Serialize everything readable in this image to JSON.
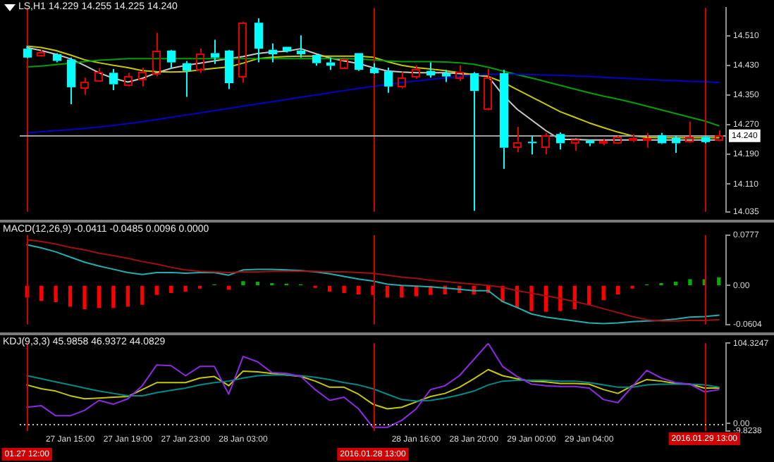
{
  "chart_data": [
    {
      "type": "candlestick",
      "title": "LS,H1 14.229 14.255 14.225 14.240",
      "categories": [
        "01.27 12:00",
        null,
        null,
        "27 Jan 15:00",
        null,
        null,
        null,
        "27 Jan 19:00",
        null,
        null,
        null,
        "27 Jan 23:00",
        null,
        null,
        null,
        "28 Jan 03:00",
        null,
        null,
        null,
        null,
        null,
        null,
        null,
        null,
        "2016.01.28 13:00",
        null,
        null,
        "28 Jan 16:00",
        null,
        null,
        null,
        "28 Jan 20:00",
        null,
        null,
        null,
        "29 Jan 00:00",
        null,
        null,
        null,
        "29 Jan 04:00",
        null,
        null,
        null,
        null,
        null,
        null,
        null,
        "2016.01.29 13:00",
        null
      ],
      "ohlc": [
        [
          14.475,
          14.483,
          14.449,
          14.451
        ],
        [
          14.455,
          14.472,
          14.453,
          14.464
        ],
        [
          14.46,
          14.463,
          14.438,
          14.442
        ],
        [
          14.446,
          14.451,
          14.325,
          14.371
        ],
        [
          14.371,
          14.397,
          14.351,
          14.385
        ],
        [
          14.389,
          14.422,
          14.387,
          14.413
        ],
        [
          14.41,
          14.42,
          14.363,
          14.379
        ],
        [
          14.378,
          14.41,
          14.373,
          14.4
        ],
        [
          14.394,
          14.424,
          14.373,
          14.414
        ],
        [
          14.409,
          14.518,
          14.4,
          14.47
        ],
        [
          14.47,
          14.472,
          14.421,
          14.438
        ],
        [
          14.436,
          14.441,
          14.345,
          14.415
        ],
        [
          14.422,
          14.475,
          14.409,
          14.463
        ],
        [
          14.463,
          14.499,
          14.434,
          14.451
        ],
        [
          14.47,
          14.472,
          14.366,
          14.382
        ],
        [
          14.402,
          14.548,
          14.383,
          14.545
        ],
        [
          14.545,
          14.557,
          14.438,
          14.475
        ],
        [
          14.472,
          14.489,
          14.438,
          14.46
        ],
        [
          14.48,
          14.48,
          14.465,
          14.468
        ],
        [
          14.47,
          14.511,
          14.451,
          14.46
        ],
        [
          14.458,
          14.46,
          14.429,
          14.436
        ],
        [
          14.438,
          14.451,
          14.418,
          14.429
        ],
        [
          14.426,
          14.451,
          14.424,
          14.448
        ],
        [
          14.463,
          14.463,
          14.415,
          14.418
        ],
        [
          14.422,
          14.436,
          14.407,
          14.409
        ],
        [
          14.414,
          14.424,
          14.356,
          14.373
        ],
        [
          14.373,
          14.412,
          14.368,
          14.397
        ],
        [
          14.4,
          14.43,
          14.394,
          14.42
        ],
        [
          14.415,
          14.438,
          14.397,
          14.403
        ],
        [
          14.409,
          14.418,
          14.385,
          14.4
        ],
        [
          14.4,
          14.43,
          14.388,
          14.414
        ],
        [
          14.409,
          14.412,
          14.038,
          14.361
        ],
        [
          14.315,
          14.421,
          14.309,
          14.397
        ],
        [
          14.409,
          14.418,
          14.151,
          14.208
        ],
        [
          14.211,
          14.264,
          14.196,
          14.224
        ],
        [
          14.224,
          14.24,
          14.19,
          14.221
        ],
        [
          14.208,
          14.248,
          14.19,
          14.24
        ],
        [
          14.245,
          14.249,
          14.203,
          14.22
        ],
        [
          14.223,
          14.235,
          14.2,
          14.232
        ],
        [
          14.227,
          14.23,
          14.212,
          14.22
        ],
        [
          14.224,
          14.232,
          14.215,
          14.225
        ],
        [
          14.221,
          14.24,
          14.218,
          14.236
        ],
        [
          14.23,
          14.245,
          14.223,
          14.235
        ],
        [
          14.23,
          14.248,
          14.208,
          14.235
        ],
        [
          14.242,
          14.248,
          14.218,
          14.22
        ],
        [
          14.235,
          14.24,
          14.194,
          14.22
        ],
        [
          14.223,
          14.278,
          14.221,
          14.236
        ],
        [
          14.237,
          14.24,
          14.22,
          14.223
        ],
        [
          14.229,
          14.255,
          14.225,
          14.24
        ]
      ],
      "colors": [
        "#00ffff",
        "#e00000",
        "#00ffff",
        "#00ffff",
        "#e00000",
        "#e00000",
        "#00ffff",
        "#e00000",
        "#e00000",
        "#e00000",
        "#00ffff",
        "#00ffff",
        "#e00000",
        "#00ffff",
        "#00ffff",
        "#e00000",
        "#00ffff",
        "#00ffff",
        "#00ffff",
        "#00ffff",
        "#00ffff",
        "#00ffff",
        "#e00000",
        "#00ffff",
        "#00ffff",
        "#00ffff",
        "#e00000",
        "#e00000",
        "#00ffff",
        "#00ffff",
        "#e00000",
        "#00ffff",
        "#e00000",
        "#00ffff",
        "#e00000",
        "#00ffff",
        "#e00000",
        "#00ffff",
        "#e00000",
        "#00ffff",
        "#e00000",
        "#e00000",
        "#e00000",
        "#e00000",
        "#00ffff",
        "#00ffff",
        "#e00000",
        "#00ffff",
        "#e00000"
      ],
      "series": [
        {
          "type": "line",
          "color": "#c8c8c8",
          "values": [
            14.478,
            14.47,
            14.46,
            14.448,
            14.43,
            14.41,
            14.395,
            14.385,
            14.395,
            14.41,
            14.422,
            14.43,
            14.436,
            14.442,
            14.448,
            14.454,
            14.462,
            14.466,
            14.468,
            14.475,
            14.462,
            14.45,
            14.442,
            14.435,
            14.424,
            14.415,
            14.412,
            14.41,
            14.41,
            14.41,
            14.408,
            14.404,
            14.4,
            14.351,
            14.312,
            14.283,
            14.254,
            14.23,
            14.23,
            14.229,
            14.229,
            14.229,
            14.229,
            14.229,
            14.229,
            14.229,
            14.229,
            14.229,
            14.229
          ]
        },
        {
          "type": "line",
          "color": "#c8c800",
          "values": [
            14.482,
            14.478,
            14.47,
            14.458,
            14.445,
            14.437,
            14.43,
            14.424,
            14.416,
            14.413,
            14.412,
            14.413,
            14.418,
            14.422,
            14.426,
            14.436,
            14.448,
            14.452,
            14.454,
            14.455,
            14.455,
            14.455,
            14.455,
            14.455,
            14.452,
            14.44,
            14.43,
            14.424,
            14.42,
            14.416,
            14.41,
            14.405,
            14.4,
            14.385,
            14.365,
            14.345,
            14.325,
            14.305,
            14.29,
            14.275,
            14.262,
            14.25,
            14.24,
            14.236,
            14.235,
            14.235,
            14.235,
            14.235,
            14.235
          ]
        },
        {
          "type": "line",
          "color": "#00a000",
          "values": [
            14.426,
            14.428,
            14.432,
            14.436,
            14.44,
            14.444,
            14.446,
            14.448,
            14.448,
            14.448,
            14.448,
            14.448,
            14.448,
            14.448,
            14.448,
            14.448,
            14.448,
            14.448,
            14.448,
            14.448,
            14.448,
            14.448,
            14.448,
            14.447,
            14.445,
            14.442,
            14.44,
            14.44,
            14.44,
            14.439,
            14.437,
            14.433,
            14.425,
            14.415,
            14.405,
            14.396,
            14.386,
            14.376,
            14.366,
            14.356,
            14.347,
            14.339,
            14.33,
            14.32,
            14.31,
            14.3,
            14.29,
            14.28,
            14.267
          ]
        },
        {
          "type": "line",
          "color": "#0000c8",
          "values": [
            14.248,
            14.251,
            14.254,
            14.257,
            14.26,
            14.264,
            14.268,
            14.273,
            14.278,
            14.284,
            14.29,
            14.296,
            14.302,
            14.308,
            14.314,
            14.32,
            14.326,
            14.332,
            14.338,
            14.344,
            14.35,
            14.356,
            14.362,
            14.368,
            14.373,
            14.379,
            14.384,
            14.388,
            14.392,
            14.396,
            14.4,
            14.404,
            14.406,
            14.406,
            14.406,
            14.405,
            14.404,
            14.403,
            14.401,
            14.4,
            14.398,
            14.396,
            14.394,
            14.392,
            14.39,
            14.389,
            14.387,
            14.386,
            14.384
          ]
        }
      ],
      "ylim": [
        14.035,
        14.585
      ],
      "yticks": [
        {
          "value": 14.51,
          "label": "14.510"
        },
        {
          "value": 14.43,
          "label": "14.430"
        },
        {
          "value": 14.35,
          "label": "14.350"
        },
        {
          "value": 14.27,
          "label": "14.270"
        },
        {
          "value": 14.19,
          "label": "14.190"
        },
        {
          "value": 14.11,
          "label": "14.110"
        },
        14.035
      ],
      "ref_lines": [
        {
          "axis": "x",
          "value": "01.27 12:00",
          "color": "#d00000"
        },
        {
          "axis": "x",
          "value": "2016.01.28 13:00",
          "color": "#d00000"
        },
        {
          "axis": "x",
          "value": "2016.01.29 13:00",
          "color": "#d00000"
        },
        {
          "axis": "y",
          "value": 14.24,
          "label": "14.240",
          "color": "#a0a0a0"
        }
      ],
      "grid": false,
      "legend": false,
      "tick_labels": "y"
    },
    {
      "type": "bar",
      "title": "MACD(12,26,9) -0.0411 -0.0485 0.0096 0.0000",
      "categories": [
        "01.27 12:00",
        null,
        null,
        "27 Jan 15:00",
        null,
        null,
        null,
        "27 Jan 19:00",
        null,
        null,
        null,
        "27 Jan 23:00",
        null,
        null,
        null,
        "28 Jan 03:00",
        null,
        null,
        null,
        null,
        null,
        null,
        null,
        null,
        "2016.01.28 13:00",
        null,
        null,
        "28 Jan 16:00",
        null,
        null,
        null,
        "28 Jan 20:00",
        null,
        null,
        null,
        "29 Jan 00:00",
        null,
        null,
        null,
        "29 Jan 04:00",
        null,
        null,
        null,
        null,
        null,
        null,
        null,
        "2016.01.29 13:00",
        null
      ],
      "series": [
        {
          "type": "bar",
          "values": [
            -0.018,
            -0.023,
            -0.025,
            -0.032,
            -0.036,
            -0.034,
            -0.034,
            -0.032,
            -0.029,
            -0.014,
            -0.011,
            -0.009,
            -0.004,
            0.001,
            -0.006,
            0.006,
            0.005,
            0.003,
            0.002,
            0.001,
            -0.003,
            -0.009,
            -0.011,
            -0.013,
            -0.014,
            -0.018,
            -0.018,
            -0.016,
            -0.014,
            -0.013,
            -0.011,
            -0.013,
            -0.011,
            -0.025,
            -0.034,
            -0.039,
            -0.04,
            -0.039,
            -0.036,
            -0.03,
            -0.022,
            -0.013,
            -0.004,
            0.001,
            0.003,
            0.005,
            0.009,
            0.009,
            0.012
          ],
          "colors": [
            "#ff0000",
            "#ff0000",
            "#ff0000",
            "#ff0000",
            "#ff0000",
            "#ff0000",
            "#ff0000",
            "#ff0000",
            "#ff0000",
            "#ff0000",
            "#ff0000",
            "#ff0000",
            "#ff0000",
            "#00b000",
            "#ff0000",
            "#00b000",
            "#00b000",
            "#00b000",
            "#00b000",
            "#00b000",
            "#ff0000",
            "#ff0000",
            "#ff0000",
            "#ff0000",
            "#ff0000",
            "#ff0000",
            "#ff0000",
            "#ff0000",
            "#ff0000",
            "#ff0000",
            "#ff0000",
            "#ff0000",
            "#ff0000",
            "#ff0000",
            "#ff0000",
            "#ff0000",
            "#ff0000",
            "#ff0000",
            "#ff0000",
            "#ff0000",
            "#ff0000",
            "#ff0000",
            "#ff0000",
            "#00b000",
            "#00b000",
            "#00b000",
            "#00b000",
            "#00b000",
            "#00b000"
          ]
        },
        {
          "type": "line",
          "color": "#20b0b0",
          "values": [
            0.063,
            0.058,
            0.052,
            0.044,
            0.036,
            0.03,
            0.025,
            0.02,
            0.017,
            0.02,
            0.02,
            0.019,
            0.02,
            0.02,
            0.016,
            0.024,
            0.025,
            0.025,
            0.024,
            0.023,
            0.021,
            0.018,
            0.014,
            0.01,
            0.007,
            0.002,
            0.0,
            -0.001,
            -0.002,
            -0.004,
            -0.006,
            -0.008,
            -0.008,
            -0.025,
            -0.034,
            -0.044,
            -0.049,
            -0.052,
            -0.055,
            -0.058,
            -0.059,
            -0.058,
            -0.056,
            -0.055,
            -0.054,
            -0.052,
            -0.049,
            -0.048,
            -0.046
          ]
        },
        {
          "type": "line",
          "color": "#a01010",
          "values": [
            0.071,
            0.068,
            0.064,
            0.059,
            0.055,
            0.05,
            0.046,
            0.042,
            0.037,
            0.033,
            0.028,
            0.024,
            0.022,
            0.021,
            0.02,
            0.021,
            0.021,
            0.022,
            0.022,
            0.022,
            0.022,
            0.021,
            0.021,
            0.02,
            0.019,
            0.016,
            0.013,
            0.011,
            0.008,
            0.006,
            0.004,
            0.002,
            0.0,
            -0.003,
            -0.008,
            -0.012,
            -0.016,
            -0.02,
            -0.025,
            -0.03,
            -0.036,
            -0.042,
            -0.048,
            -0.053,
            -0.055,
            -0.055,
            -0.054,
            -0.054,
            -0.053
          ]
        }
      ],
      "ylim": [
        -0.0604,
        0.0777
      ],
      "yticks": [
        0.0777,
        {
          "value": 0,
          "label": "0.00"
        },
        -0.0604
      ],
      "ref_lines": [
        {
          "axis": "x",
          "value": "01.27 12:00",
          "color": "#d00000"
        },
        {
          "axis": "x",
          "value": "2016.01.28 13:00",
          "color": "#d00000"
        },
        {
          "axis": "x",
          "value": "2016.01.29 13:00",
          "color": "#d00000"
        }
      ],
      "grid": false,
      "legend": false,
      "tick_labels": "y"
    },
    {
      "type": "line",
      "title": "KDJ(9,3,3) 45.9858 46.9372 44.0829",
      "categories": [
        "01.27 12:00",
        null,
        null,
        "27 Jan 15:00",
        null,
        null,
        null,
        "27 Jan 19:00",
        null,
        null,
        null,
        "27 Jan 23:00",
        null,
        null,
        null,
        "28 Jan 03:00",
        null,
        null,
        null,
        null,
        null,
        null,
        null,
        null,
        "2016.01.28 13:00",
        null,
        null,
        "28 Jan 16:00",
        null,
        null,
        null,
        "28 Jan 20:00",
        null,
        null,
        null,
        "29 Jan 00:00",
        null,
        null,
        null,
        "29 Jan 04:00",
        null,
        null,
        null,
        null,
        null,
        null,
        null,
        "2016.01.29 13:00",
        null
      ],
      "series": [
        {
          "type": "line",
          "color": "#c8c800",
          "values": [
            50,
            45,
            42,
            36,
            32,
            33,
            34,
            35,
            44,
            53,
            53,
            53,
            59,
            61,
            49,
            68,
            67,
            65,
            63,
            61,
            55,
            47,
            47,
            38,
            25,
            19,
            21,
            28,
            35,
            39,
            47,
            58,
            70,
            62,
            58,
            55,
            54,
            52,
            52,
            51,
            44,
            39,
            49,
            57,
            55,
            52,
            51,
            46,
            46
          ]
        },
        {
          "type": "line",
          "color": "#008b8b",
          "values": [
            62,
            58,
            54,
            50,
            46,
            42,
            39,
            36,
            36,
            40,
            43,
            46,
            50,
            53,
            55,
            59,
            62,
            63,
            63,
            62,
            60,
            57,
            53,
            50,
            45,
            38,
            31,
            29,
            30,
            33,
            37,
            42,
            50,
            55,
            56,
            56,
            56,
            55,
            55,
            53,
            50,
            47,
            47,
            50,
            51,
            51,
            51,
            50,
            47
          ]
        },
        {
          "type": "line",
          "color": "#8a2be2",
          "values": [
            21,
            23,
            10,
            10,
            17,
            30,
            25,
            32,
            49,
            76,
            75,
            62,
            74,
            74,
            38,
            87,
            80,
            66,
            65,
            61,
            44,
            30,
            34,
            19,
            -5,
            -5,
            4,
            19,
            44,
            49,
            62,
            83,
            104,
            74,
            61,
            51,
            49,
            48,
            48,
            46,
            31,
            27,
            48,
            69,
            59,
            53,
            51,
            41,
            44
          ]
        }
      ],
      "ylim": [
        -9.8238,
        104.3247
      ],
      "yticks": [
        104.3247,
        {
          "value": 0,
          "label": "0.00"
        },
        -9.8238
      ],
      "ref_lines": [
        {
          "axis": "x",
          "value": "01.27 12:00",
          "color": "#d00000"
        },
        {
          "axis": "x",
          "value": "2016.01.28 13:00",
          "color": "#d00000"
        },
        {
          "axis": "x",
          "value": "2016.01.29 13:00",
          "color": "#d00000"
        },
        {
          "axis": "y",
          "value": 0,
          "color": "#c0c0c0",
          "line_style": "dotted"
        }
      ],
      "grid": false,
      "legend": false
    }
  ]
}
